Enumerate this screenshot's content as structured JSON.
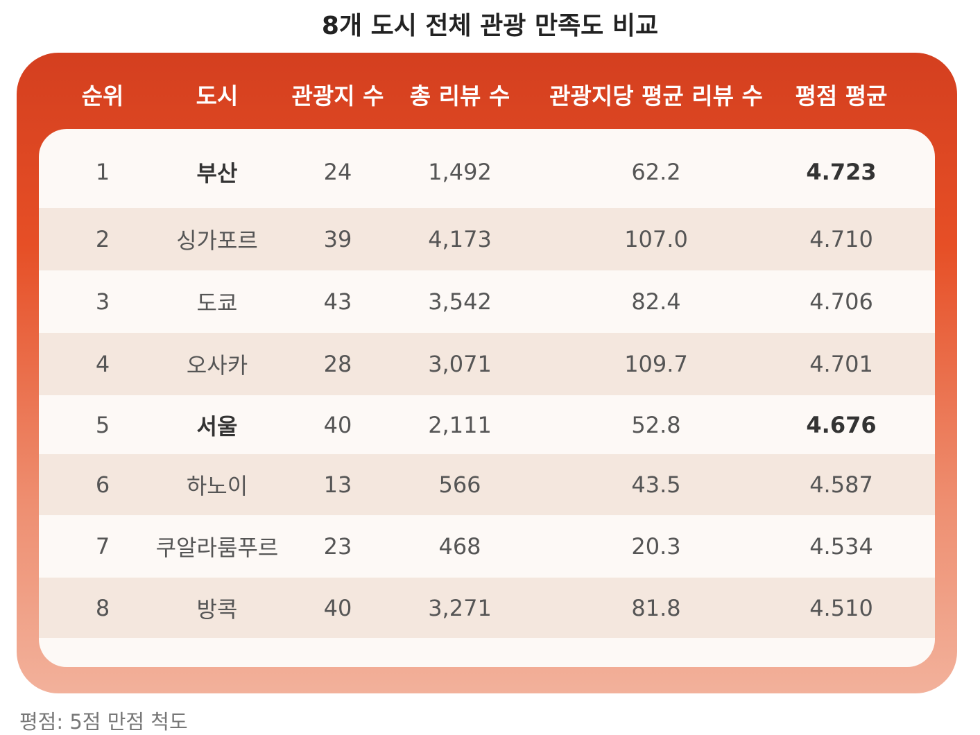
{
  "title": "8개 도시 전체 관광 만족도 비교",
  "table": {
    "headers": [
      "순위",
      "도시",
      "관광지 수",
      "총 리뷰 수",
      "관광지당 평균 리뷰 수",
      "평점 평균"
    ],
    "rows": [
      [
        "1",
        "부산",
        "24",
        "1,492",
        "62.2",
        "4.723"
      ],
      [
        "2",
        "싱가포르",
        "39",
        "4,173",
        "107.0",
        "4.710"
      ],
      [
        "3",
        "도쿄",
        "43",
        "3,542",
        "82.4",
        "4.706"
      ],
      [
        "4",
        "오사카",
        "28",
        "3,071",
        "109.7",
        "4.701"
      ],
      [
        "5",
        "서울",
        "40",
        "2,111",
        "52.8",
        "4.676"
      ],
      [
        "6",
        "하노이",
        "13",
        "566",
        "43.5",
        "4.587"
      ],
      [
        "7",
        "쿠알라룸푸르",
        "23",
        "468",
        "20.3",
        "4.534"
      ],
      [
        "8",
        "방콕",
        "40",
        "3,271",
        "81.8",
        "4.510"
      ]
    ]
  },
  "footnote": "평점: 5점 만점 척도"
}
